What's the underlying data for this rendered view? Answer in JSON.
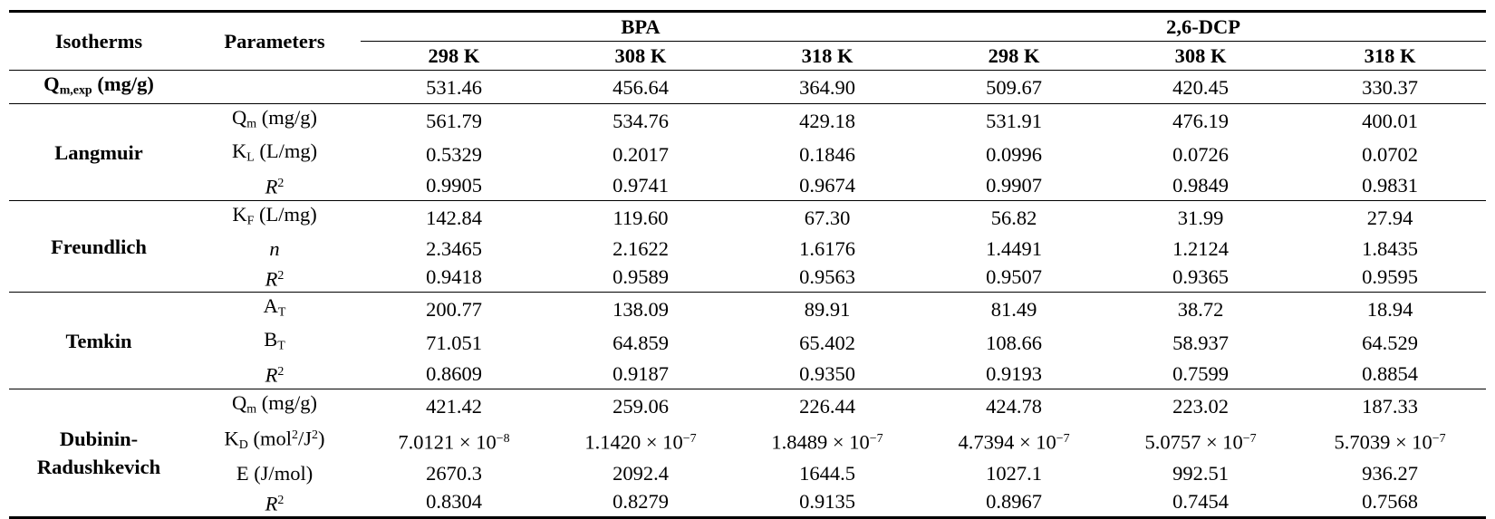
{
  "header": {
    "isotherms": "Isotherms",
    "parameters": "Parameters",
    "groups": [
      "BPA",
      "2,6-DCP"
    ],
    "temps": [
      "298 K",
      "308 K",
      "318 K",
      "298 K",
      "308 K",
      "318 K"
    ]
  },
  "qexp": {
    "label_main": "Q",
    "label_sub": "m,exp",
    "label_unit": " (mg/g)",
    "values": [
      "531.46",
      "456.64",
      "364.90",
      "509.67",
      "420.45",
      "330.37"
    ]
  },
  "models": [
    {
      "name": [
        "Langmuir"
      ],
      "params": [
        {
          "base": "Q",
          "sub": "m",
          "rest": " (mg/g)",
          "values": [
            "561.79",
            "534.76",
            "429.18",
            "531.91",
            "476.19",
            "400.01"
          ]
        },
        {
          "base": "K",
          "sub": "L",
          "rest": " (L/mg)",
          "values": [
            "0.5329",
            "0.2017",
            "0.1846",
            "0.0996",
            "0.0726",
            "0.0702"
          ]
        },
        {
          "base": "R",
          "sup": "2",
          "italic": true,
          "values": [
            "0.9905",
            "0.9741",
            "0.9674",
            "0.9907",
            "0.9849",
            "0.9831"
          ]
        }
      ]
    },
    {
      "name": [
        "Freundlich"
      ],
      "params": [
        {
          "base": "K",
          "sub": "F",
          "rest": " (L/mg)",
          "values": [
            "142.84",
            "119.60",
            "67.30",
            "56.82",
            "31.99",
            "27.94"
          ]
        },
        {
          "base": "n",
          "italic": true,
          "values": [
            "2.3465",
            "2.1622",
            "1.6176",
            "1.4491",
            "1.2124",
            "1.8435"
          ]
        },
        {
          "base": "R",
          "sup": "2",
          "italic": true,
          "values": [
            "0.9418",
            "0.9589",
            "0.9563",
            "0.9507",
            "0.9365",
            "0.9595"
          ]
        }
      ]
    },
    {
      "name": [
        "Temkin"
      ],
      "params": [
        {
          "base": "A",
          "sub": "T",
          "values": [
            "200.77",
            "138.09",
            "89.91",
            "81.49",
            "38.72",
            "18.94"
          ]
        },
        {
          "base": "B",
          "sub": "T",
          "values": [
            "71.051",
            "64.859",
            "65.402",
            "108.66",
            "58.937",
            "64.529"
          ]
        },
        {
          "base": "R",
          "sup": "2",
          "italic": true,
          "values": [
            "0.8609",
            "0.9187",
            "0.9350",
            "0.9193",
            "0.7599",
            "0.8854"
          ]
        }
      ]
    },
    {
      "name": [
        "Dubinin-",
        "Radushkevich"
      ],
      "params": [
        {
          "base": "Q",
          "sub": "m",
          "rest": " (mg/g)",
          "values": [
            "421.42",
            "259.06",
            "226.44",
            "424.78",
            "223.02",
            "187.33"
          ]
        },
        {
          "base": "K",
          "sub": "D",
          "rest_parts": [
            " (mol",
            "2",
            "/J",
            "2",
            ")"
          ],
          "sci": [
            {
              "mant": "7.0121 × 10",
              "exp": "−8"
            },
            {
              "mant": "1.1420 × 10",
              "exp": "−7"
            },
            {
              "mant": "1.8489 × 10",
              "exp": "−7"
            },
            {
              "mant": "4.7394 × 10",
              "exp": "−7"
            },
            {
              "mant": "5.0757 × 10",
              "exp": "−7"
            },
            {
              "mant": "5.7039 × 10",
              "exp": "−7"
            }
          ]
        },
        {
          "base": "E",
          "rest": " (J/mol)",
          "values": [
            "2670.3",
            "2092.4",
            "1644.5",
            "1027.1",
            "992.51",
            "936.27"
          ]
        },
        {
          "base": "R",
          "sup": "2",
          "italic": true,
          "values": [
            "0.8304",
            "0.8279",
            "0.9135",
            "0.8967",
            "0.7454",
            "0.7568"
          ]
        }
      ]
    }
  ]
}
